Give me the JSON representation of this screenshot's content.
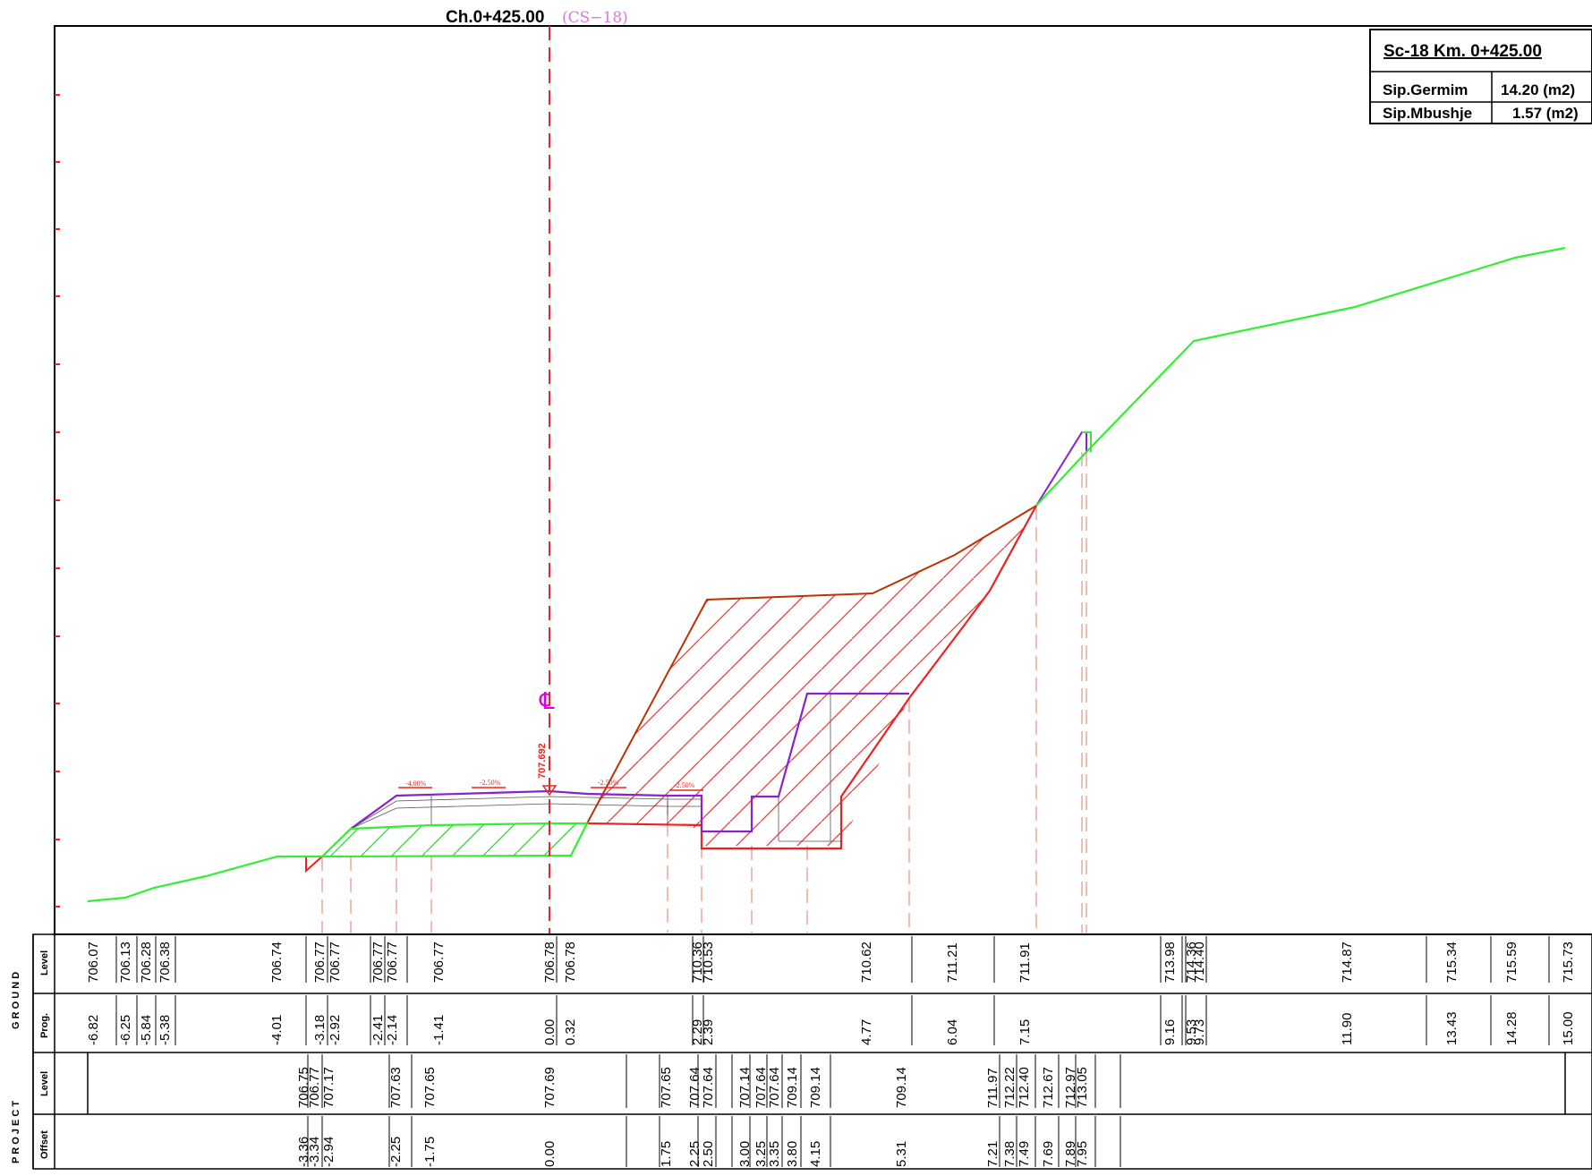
{
  "header": {
    "chainage": "Ch.0+425.00",
    "section_ref": "(CS−18)"
  },
  "summary_table": {
    "title": "Sc-18  Km. 0+425.00",
    "rows": [
      {
        "label": "Sip.Germim",
        "value": "14.20 (m2)"
      },
      {
        "label": "Sip.Mbushje",
        "value": "1.57 (m2)"
      }
    ]
  },
  "centerline": {
    "symbol": "℄",
    "level": "707.692"
  },
  "slopes": [
    "-4.00%",
    "-2.50%",
    "-2.50%",
    "-2.50%"
  ],
  "colors": {
    "ground": "#33ee33",
    "excavation": "#ee2222",
    "fill": "#22dd22",
    "pavement": "#8822cc",
    "existing_slope": "#bb3300",
    "centerline": "#dd00dd",
    "axis": "#ee2222",
    "guides": "#e8a89a",
    "section_ref": "#dd77dd"
  },
  "band_titles": {
    "ground": "G R O U N D",
    "project": "P R O J E C T",
    "level": "Level",
    "prog": "Prog.",
    "offset": "Offset"
  },
  "ground_band": {
    "level": [
      "706.07",
      "706.13",
      "706.28",
      "706.38",
      "706.74",
      "706.77",
      "706.77",
      "706.77",
      "706.77",
      "706.77",
      "706.78",
      "706.78",
      "710.36",
      "710.53",
      "710.62",
      "711.21",
      "711.91",
      "713.98",
      "714.36",
      "714.40",
      "714.87",
      "715.34",
      "715.59",
      "715.73"
    ],
    "prog": [
      "-6.82",
      "-6.25",
      "-5.84",
      "-5.38",
      "-4.01",
      "-3.18",
      "-2.92",
      "-2.41",
      "-2.14",
      "-1.41",
      "0.00",
      "0.32",
      "2.29",
      "2.39",
      "4.77",
      "6.04",
      "7.15",
      "9.16",
      "9.53",
      "9.73",
      "11.90",
      "13.43",
      "14.28",
      "15.00"
    ]
  },
  "project_band": {
    "level": [
      "706.75",
      "706.77",
      "707.17",
      "707.63",
      "707.65",
      "707.69",
      "707.65",
      "707.64",
      "707.64",
      "707.14",
      "707.64",
      "707.64",
      "709.14",
      "709.14",
      "709.14",
      "711.97",
      "712.22",
      "712.40",
      "712.67",
      "712.97",
      "713.05"
    ],
    "offset": [
      "-3.36",
      "-3.34",
      "-2.94",
      "-2.25",
      "-1.75",
      "0.00",
      "1.75",
      "2.25",
      "2.50",
      "3.00",
      "3.25",
      "3.35",
      "3.80",
      "4.15",
      "5.31",
      "7.21",
      "7.38",
      "7.49",
      "7.69",
      "7.89",
      "7.95"
    ]
  }
}
